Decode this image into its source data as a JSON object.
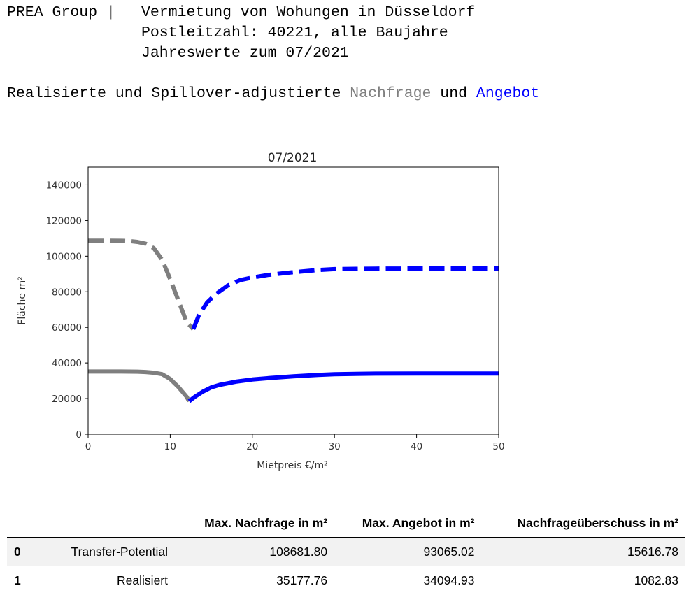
{
  "header": {
    "left": "PREA Group |",
    "line1": "Vermietung von Wohungen in Düsseldorf",
    "line2": "Postleitzahl: 40221, alle Baujahre",
    "line3": "Jahreswerte zum 07/2021"
  },
  "subtitle": {
    "prefix": "Realisierte und Spillover-adjustierte ",
    "demand_word": "Nachfrage",
    "middle": " und ",
    "supply_word": "Angebot",
    "demand_color": "#7f7f7f",
    "supply_color": "#0000ff"
  },
  "chart_data": {
    "type": "line",
    "title": "07/2021",
    "xlabel": "Mietpreis €/m²",
    "ylabel": "Fläche m²",
    "xlim": [
      0,
      50
    ],
    "ylim": [
      0,
      150000
    ],
    "x_ticks": [
      0,
      10,
      20,
      30,
      40,
      50
    ],
    "y_ticks": [
      0,
      20000,
      40000,
      60000,
      80000,
      100000,
      120000,
      140000
    ],
    "grid": false,
    "series": [
      {
        "role": "transfer-potential-demand",
        "color": "#7f7f7f",
        "style": "dashed",
        "x": [
          0,
          2,
          4,
          5,
          6,
          7,
          8,
          9,
          10,
          11,
          12,
          12.8
        ],
        "y": [
          108682,
          108682,
          108600,
          108500,
          108000,
          107000,
          104500,
          98000,
          87000,
          75000,
          63000,
          59000
        ]
      },
      {
        "role": "transfer-potential-supply",
        "color": "#0000ff",
        "style": "dashed",
        "x": [
          12.8,
          13.5,
          14.5,
          15.5,
          17,
          18.5,
          20,
          22,
          25,
          28,
          30,
          35,
          40,
          45,
          50
        ],
        "y": [
          59000,
          67000,
          74000,
          78500,
          83500,
          86500,
          88000,
          89500,
          91000,
          92200,
          92700,
          93000,
          93065,
          93065,
          93065
        ]
      },
      {
        "role": "realised-demand",
        "color": "#7f7f7f",
        "style": "solid",
        "x": [
          0,
          2,
          4,
          6,
          7,
          8,
          9,
          10,
          11,
          12,
          12.3
        ],
        "y": [
          35178,
          35178,
          35178,
          35100,
          34900,
          34500,
          33700,
          31000,
          26500,
          21000,
          18500
        ]
      },
      {
        "role": "realised-supply",
        "color": "#0000ff",
        "style": "solid",
        "x": [
          12.3,
          13,
          14,
          15,
          16,
          18,
          20,
          22,
          25,
          28,
          30,
          35,
          40,
          45,
          50
        ],
        "y": [
          18500,
          21000,
          24000,
          26300,
          27700,
          29500,
          30700,
          31500,
          32500,
          33300,
          33700,
          34000,
          34095,
          34095,
          34095
        ]
      }
    ]
  },
  "table": {
    "columns": [
      "",
      "",
      "Max. Nachfrage in m²",
      "Max. Angebot in m²",
      "Nachfrageüberschuss in m²"
    ],
    "rows": [
      {
        "index": "0",
        "label": "Transfer-Potential",
        "nachfrage": "108681.80",
        "angebot": "93065.02",
        "ueberschuss": "15616.78"
      },
      {
        "index": "1",
        "label": "Realisiert",
        "nachfrage": "35177.76",
        "angebot": "34094.93",
        "ueberschuss": "1082.83"
      }
    ]
  }
}
